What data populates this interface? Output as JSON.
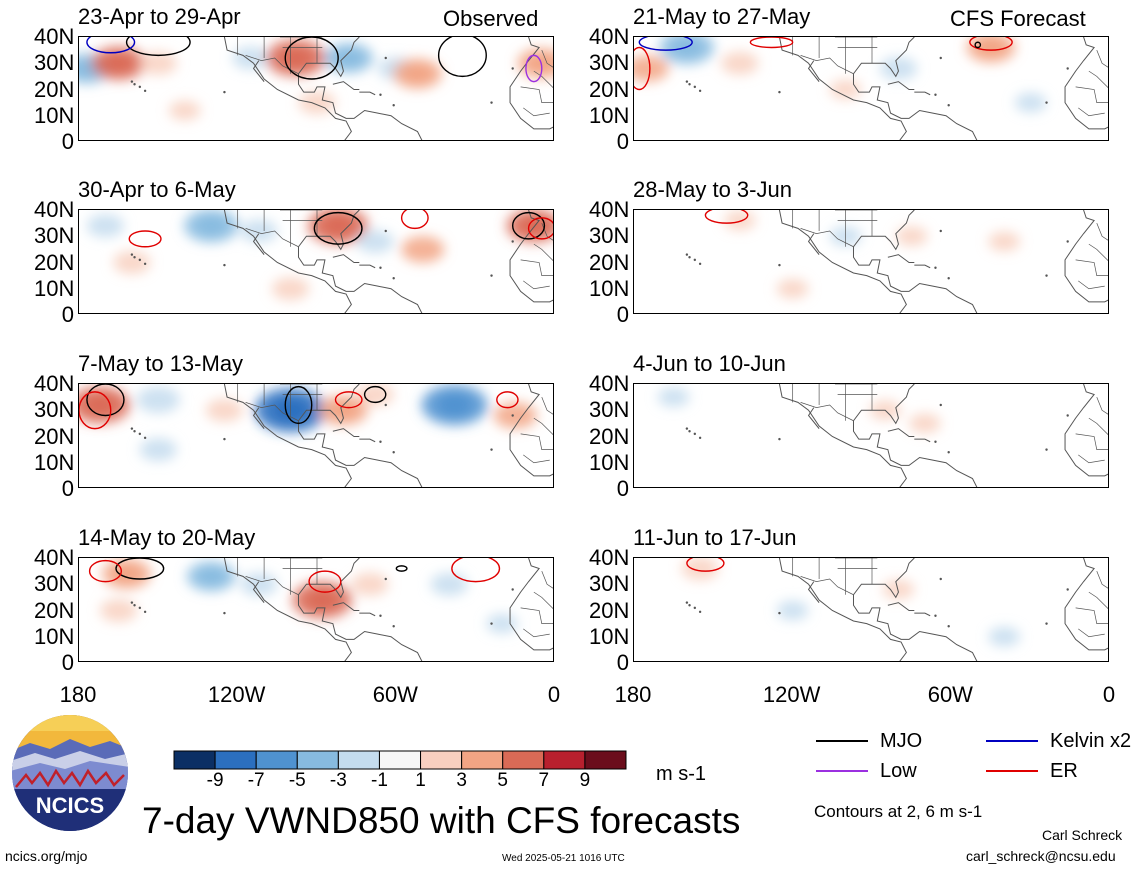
{
  "column_tags": {
    "observed": "Observed",
    "forecast": "CFS Forecast"
  },
  "panels": [
    {
      "title": "23-Apr to 29-Apr",
      "group": "observed",
      "anomalies": [
        {
          "lon": -177,
          "lat": 28,
          "v": -4
        },
        {
          "lon": -165,
          "lat": 30,
          "v": 5
        },
        {
          "lon": -150,
          "lat": 30,
          "v": 2
        },
        {
          "lon": -115,
          "lat": 32,
          "v": -2
        },
        {
          "lon": -98,
          "lat": 32,
          "v": 6
        },
        {
          "lon": -78,
          "lat": 32,
          "v": -4
        },
        {
          "lon": -60,
          "lat": 28,
          "v": -2
        },
        {
          "lon": -52,
          "lat": 26,
          "v": 4
        },
        {
          "lon": -5,
          "lat": 30,
          "v": 4
        },
        {
          "lon": -140,
          "lat": 12,
          "v": 1
        },
        {
          "lon": -90,
          "lat": 15,
          "v": 2
        }
      ],
      "contours": [
        {
          "type": "MJO",
          "lon": -150,
          "lat": 38,
          "rx": 12,
          "ry": 5
        },
        {
          "type": "MJO",
          "lon": -92,
          "lat": 32,
          "rx": 10,
          "ry": 8
        },
        {
          "type": "MJO",
          "lon": -35,
          "lat": 33,
          "rx": 9,
          "ry": 8
        },
        {
          "type": "Kelvin x2",
          "lon": -168,
          "lat": 38,
          "rx": 9,
          "ry": 4
        },
        {
          "type": "Low",
          "lon": -8,
          "lat": 28,
          "rx": 3,
          "ry": 5
        }
      ]
    },
    {
      "title": "30-Apr to 6-May",
      "group": "observed",
      "anomalies": [
        {
          "lon": -130,
          "lat": 34,
          "v": -5
        },
        {
          "lon": -112,
          "lat": 32,
          "v": -2
        },
        {
          "lon": -82,
          "lat": 34,
          "v": 6
        },
        {
          "lon": -68,
          "lat": 28,
          "v": -2
        },
        {
          "lon": -50,
          "lat": 25,
          "v": 3
        },
        {
          "lon": -160,
          "lat": 20,
          "v": 2
        },
        {
          "lon": -170,
          "lat": 34,
          "v": -2
        },
        {
          "lon": -8,
          "lat": 34,
          "v": 5
        },
        {
          "lon": -100,
          "lat": 10,
          "v": 2
        }
      ],
      "contours": [
        {
          "type": "MJO",
          "lon": -82,
          "lat": 33,
          "rx": 9,
          "ry": 6
        },
        {
          "type": "MJO",
          "lon": -10,
          "lat": 34,
          "rx": 6,
          "ry": 5
        },
        {
          "type": "ER",
          "lon": -155,
          "lat": 29,
          "rx": 6,
          "ry": 3
        },
        {
          "type": "ER",
          "lon": -53,
          "lat": 37,
          "rx": 5,
          "ry": 4
        },
        {
          "type": "ER",
          "lon": -5,
          "lat": 33,
          "rx": 5,
          "ry": 4
        }
      ]
    },
    {
      "title": "7-May to 13-May",
      "group": "observed",
      "anomalies": [
        {
          "lon": -172,
          "lat": 32,
          "v": 6
        },
        {
          "lon": -150,
          "lat": 34,
          "v": -3
        },
        {
          "lon": -125,
          "lat": 30,
          "v": 2
        },
        {
          "lon": -100,
          "lat": 30,
          "v": -8
        },
        {
          "lon": -80,
          "lat": 30,
          "v": 4
        },
        {
          "lon": -68,
          "lat": 36,
          "v": 2
        },
        {
          "lon": -38,
          "lat": 32,
          "v": -7
        },
        {
          "lon": -15,
          "lat": 28,
          "v": 3
        },
        {
          "lon": -150,
          "lat": 15,
          "v": -2
        }
      ],
      "contours": [
        {
          "type": "MJO",
          "lon": -170,
          "lat": 34,
          "rx": 7,
          "ry": 6
        },
        {
          "type": "MJO",
          "lon": -97,
          "lat": 32,
          "rx": 5,
          "ry": 7
        },
        {
          "type": "MJO",
          "lon": -68,
          "lat": 36,
          "rx": 4,
          "ry": 3
        },
        {
          "type": "ER",
          "lon": -174,
          "lat": 30,
          "rx": 6,
          "ry": 7
        },
        {
          "type": "ER",
          "lon": -78,
          "lat": 34,
          "rx": 5,
          "ry": 3
        },
        {
          "type": "ER",
          "lon": -18,
          "lat": 34,
          "rx": 4,
          "ry": 3
        }
      ]
    },
    {
      "title": "14-May to 20-May",
      "group": "observed",
      "anomalies": [
        {
          "lon": -162,
          "lat": 34,
          "v": 4
        },
        {
          "lon": -130,
          "lat": 33,
          "v": -4
        },
        {
          "lon": -112,
          "lat": 30,
          "v": -2
        },
        {
          "lon": -88,
          "lat": 24,
          "v": 6
        },
        {
          "lon": -70,
          "lat": 30,
          "v": 2
        },
        {
          "lon": -40,
          "lat": 30,
          "v": -2
        },
        {
          "lon": -165,
          "lat": 20,
          "v": 2
        },
        {
          "lon": -20,
          "lat": 15,
          "v": -1
        }
      ],
      "contours": [
        {
          "type": "MJO",
          "lon": -157,
          "lat": 36,
          "rx": 9,
          "ry": 4
        },
        {
          "type": "ER",
          "lon": -170,
          "lat": 35,
          "rx": 6,
          "ry": 4
        },
        {
          "type": "ER",
          "lon": -87,
          "lat": 31,
          "rx": 6,
          "ry": 4
        },
        {
          "type": "ER",
          "lon": -30,
          "lat": 36,
          "rx": 9,
          "ry": 5
        },
        {
          "type": "MJO",
          "lon": -58,
          "lat": 36,
          "rx": 2,
          "ry": 1
        }
      ]
    },
    {
      "title": "21-May to 27-May",
      "group": "forecast",
      "anomalies": [
        {
          "lon": -160,
          "lat": 36,
          "v": -5
        },
        {
          "lon": -140,
          "lat": 30,
          "v": 2
        },
        {
          "lon": -175,
          "lat": 28,
          "v": 3
        },
        {
          "lon": -45,
          "lat": 36,
          "v": 4
        },
        {
          "lon": -100,
          "lat": 20,
          "v": 1
        },
        {
          "lon": -80,
          "lat": 28,
          "v": -2
        },
        {
          "lon": -30,
          "lat": 15,
          "v": -1
        }
      ],
      "contours": [
        {
          "type": "Kelvin x2",
          "lon": -168,
          "lat": 38,
          "rx": 10,
          "ry": 3
        },
        {
          "type": "ER",
          "lon": -178,
          "lat": 28,
          "rx": 4,
          "ry": 8
        },
        {
          "type": "ER",
          "lon": -45,
          "lat": 38,
          "rx": 8,
          "ry": 3
        },
        {
          "type": "ER",
          "lon": -128,
          "lat": 38,
          "rx": 8,
          "ry": 2
        },
        {
          "type": "MJO",
          "lon": -50,
          "lat": 37,
          "rx": 1,
          "ry": 1
        }
      ]
    },
    {
      "title": "28-May to 3-Jun",
      "group": "forecast",
      "anomalies": [
        {
          "lon": -140,
          "lat": 36,
          "v": 1
        },
        {
          "lon": -75,
          "lat": 30,
          "v": 1
        },
        {
          "lon": -40,
          "lat": 28,
          "v": 1
        },
        {
          "lon": -120,
          "lat": 10,
          "v": 1
        },
        {
          "lon": -100,
          "lat": 30,
          "v": -1
        }
      ],
      "contours": [
        {
          "type": "ER",
          "lon": -145,
          "lat": 38,
          "rx": 8,
          "ry": 3
        }
      ]
    },
    {
      "title": "4-Jun to 10-Jun",
      "group": "forecast",
      "anomalies": [
        {
          "lon": -70,
          "lat": 25,
          "v": 1
        },
        {
          "lon": -85,
          "lat": 30,
          "v": 1
        },
        {
          "lon": -165,
          "lat": 35,
          "v": -1
        }
      ],
      "contours": []
    },
    {
      "title": "11-Jun to 17-Jun",
      "group": "forecast",
      "anomalies": [
        {
          "lon": -155,
          "lat": 36,
          "v": 2
        },
        {
          "lon": -80,
          "lat": 28,
          "v": 1
        },
        {
          "lon": -120,
          "lat": 20,
          "v": -1
        },
        {
          "lon": -40,
          "lat": 10,
          "v": -1
        }
      ],
      "contours": [
        {
          "type": "ER",
          "lon": -153,
          "lat": 38,
          "rx": 7,
          "ry": 3
        }
      ]
    }
  ],
  "lat_labels": [
    "40N",
    "30N",
    "20N",
    "10N",
    "0"
  ],
  "lon_labels": [
    "180",
    "120W",
    "60W",
    "0"
  ],
  "colorbar": {
    "colors": [
      "#0b2f64",
      "#2b6fbf",
      "#4f92d0",
      "#87bbe0",
      "#c4dcee",
      "#f7f7f7",
      "#f8d0c0",
      "#f2a484",
      "#da6a56",
      "#b8202e",
      "#6b0d1c"
    ],
    "tick_labels": [
      "-9",
      "-7",
      "-5",
      "-3",
      "-1",
      "1",
      "3",
      "5",
      "7",
      "9"
    ],
    "units": "m s-1"
  },
  "legend": [
    {
      "label": "MJO",
      "color": "#000000"
    },
    {
      "label": "Kelvin x2",
      "color": "#0000c0"
    },
    {
      "label": "Low",
      "color": "#9b30e0"
    },
    {
      "label": "ER",
      "color": "#e00000"
    }
  ],
  "contour_note": "Contours at 2, 6 m s-1",
  "main_title": "7-day VWND850 with CFS forecasts",
  "logo_text": "NCICS",
  "footer": {
    "left": "ncics.org/mjo",
    "timestamp": "Wed 2025-05-21 1016 UTC",
    "author": "Carl Schreck",
    "email": "carl_schreck@ncsu.edu"
  }
}
